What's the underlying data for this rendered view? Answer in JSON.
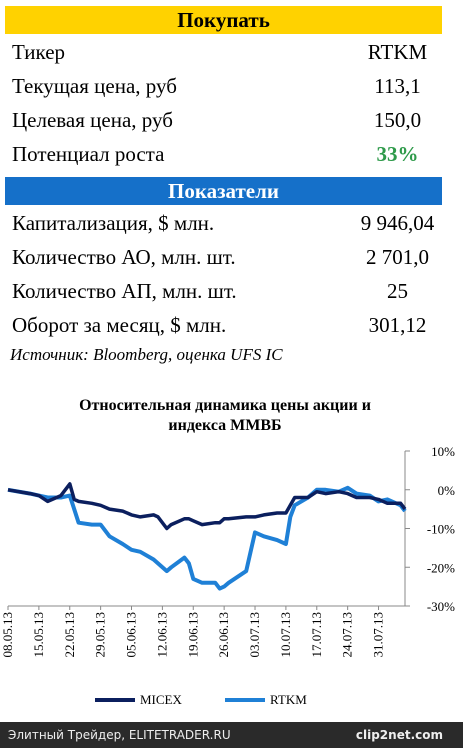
{
  "buy_panel": {
    "title": "Покупать",
    "rows": [
      [
        "Тикер",
        "RTKM"
      ],
      [
        "Текущая цена, руб",
        "113,1"
      ],
      [
        "Целевая цена, руб",
        "150,0"
      ],
      [
        "Потенциал роста",
        "33%"
      ]
    ]
  },
  "indicators_panel": {
    "title": "Показатели",
    "rows": [
      [
        "Капитализация, $ млн.",
        "9 946,04"
      ],
      [
        "Количество АО, млн. шт.",
        "2 701,0"
      ],
      [
        "Количество АП, млн. шт.",
        "25"
      ],
      [
        "Оборот за месяц, $ млн.",
        "301,12"
      ]
    ]
  },
  "source": "Источник: Bloomberg, оценка UFS IC",
  "chart_data": {
    "type": "line",
    "title": "Относительная динамика цены акции и индекса ММВБ",
    "x": [
      "08.05.13",
      "13.05.13",
      "15.05.13",
      "17.05.13",
      "20.05.13",
      "22.05.13",
      "23.05.13",
      "24.05.13",
      "27.05.13",
      "29.05.13",
      "31.05.13",
      "03.06.13",
      "05.06.13",
      "07.06.13",
      "10.06.13",
      "11.06.13",
      "13.06.13",
      "14.06.13",
      "17.06.13",
      "18.06.13",
      "19.06.13",
      "21.06.13",
      "24.06.13",
      "25.06.13",
      "26.06.13",
      "27.06.13",
      "01.07.13",
      "03.07.13",
      "05.07.13",
      "08.07.13",
      "10.07.13",
      "11.07.13",
      "12.07.13",
      "15.07.13",
      "17.07.13",
      "19.07.13",
      "22.07.13",
      "24.07.13",
      "26.07.13",
      "29.07.13",
      "31.07.13",
      "02.08.13",
      "05.08.13",
      "06.08.13"
    ],
    "series": [
      {
        "name": "MICEX",
        "color": "#0b1f5e",
        "values": [
          0,
          -1,
          -1.5,
          -3,
          -1.5,
          1.5,
          -2.5,
          -3,
          -3.5,
          -4,
          -5,
          -5.5,
          -6.5,
          -7,
          -6.5,
          -7,
          -10,
          -9,
          -7.5,
          -7.5,
          -8,
          -9,
          -8.5,
          -8.5,
          -7.5,
          -7.5,
          -7,
          -7,
          -6.5,
          -6,
          -6,
          -4,
          -2,
          -2,
          -0.5,
          -1,
          -0.5,
          -1,
          -2,
          -2,
          -2.5,
          -3.5,
          -3.5,
          -5
        ]
      },
      {
        "name": "RTKM",
        "color": "#1f80d6",
        "values": [
          0,
          -1,
          -1.5,
          -2,
          -2,
          -1.5,
          -5,
          -8.5,
          -9,
          -9,
          -12,
          -14,
          -15.5,
          -16,
          -18,
          -19,
          -21,
          -20,
          -17.5,
          -19,
          -23,
          -24,
          -24,
          -25.5,
          -25,
          -24,
          -21,
          -11,
          -12,
          -13,
          -14,
          -7,
          -4,
          -2,
          0,
          0,
          -0.5,
          0.5,
          -1,
          -1.5,
          -3,
          -2.5,
          -4,
          -5.5
        ]
      }
    ],
    "xlim": [
      "08.05.13",
      "06.08.13"
    ],
    "xticks": [
      "08.05.13",
      "15.05.13",
      "22.05.13",
      "29.05.13",
      "05.06.13",
      "12.06.13",
      "19.06.13",
      "26.06.13",
      "03.07.13",
      "10.07.13",
      "17.07.13",
      "24.07.13",
      "31.07.13"
    ],
    "ylim": [
      -30,
      10
    ],
    "yticks": [
      {
        "value": 10,
        "label": "10%"
      },
      {
        "value": 0,
        "label": "0%"
      },
      {
        "value": -10,
        "label": "-10%"
      },
      {
        "value": -20,
        "label": "-20%"
      },
      {
        "value": -30,
        "label": "-30%"
      }
    ],
    "y_axis_side": "right",
    "legend": "bottom"
  },
  "footer": {
    "left": "Элитный Трейдер, ELITETRADER.RU",
    "right": "clip2net.com"
  }
}
